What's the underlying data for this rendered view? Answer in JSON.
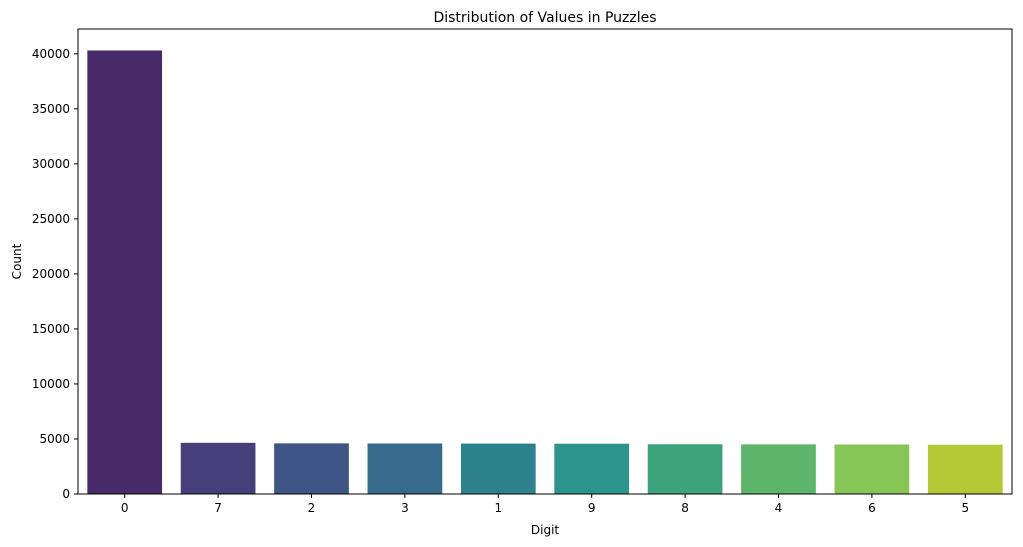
{
  "chart_data": {
    "type": "bar",
    "title": "Distribution of Values in Puzzles",
    "xlabel": "Digit",
    "ylabel": "Count",
    "categories": [
      "0",
      "7",
      "2",
      "3",
      "1",
      "9",
      "8",
      "4",
      "6",
      "5"
    ],
    "values": [
      40300,
      4650,
      4600,
      4590,
      4580,
      4570,
      4520,
      4510,
      4500,
      4480
    ],
    "ylim": [
      0,
      42250
    ],
    "yticks": [
      0,
      5000,
      10000,
      15000,
      20000,
      25000,
      30000,
      35000,
      40000
    ],
    "ytick_labels": [
      "0",
      "5000",
      "10000",
      "15000",
      "20000",
      "25000",
      "30000",
      "35000",
      "40000"
    ],
    "colors": [
      "#482a6a",
      "#463f7a",
      "#3e5586",
      "#376b8c",
      "#2e828e",
      "#2c948a",
      "#3ca37a",
      "#5db56b",
      "#88c557",
      "#b3c936"
    ],
    "grid": false,
    "legend": "none"
  }
}
